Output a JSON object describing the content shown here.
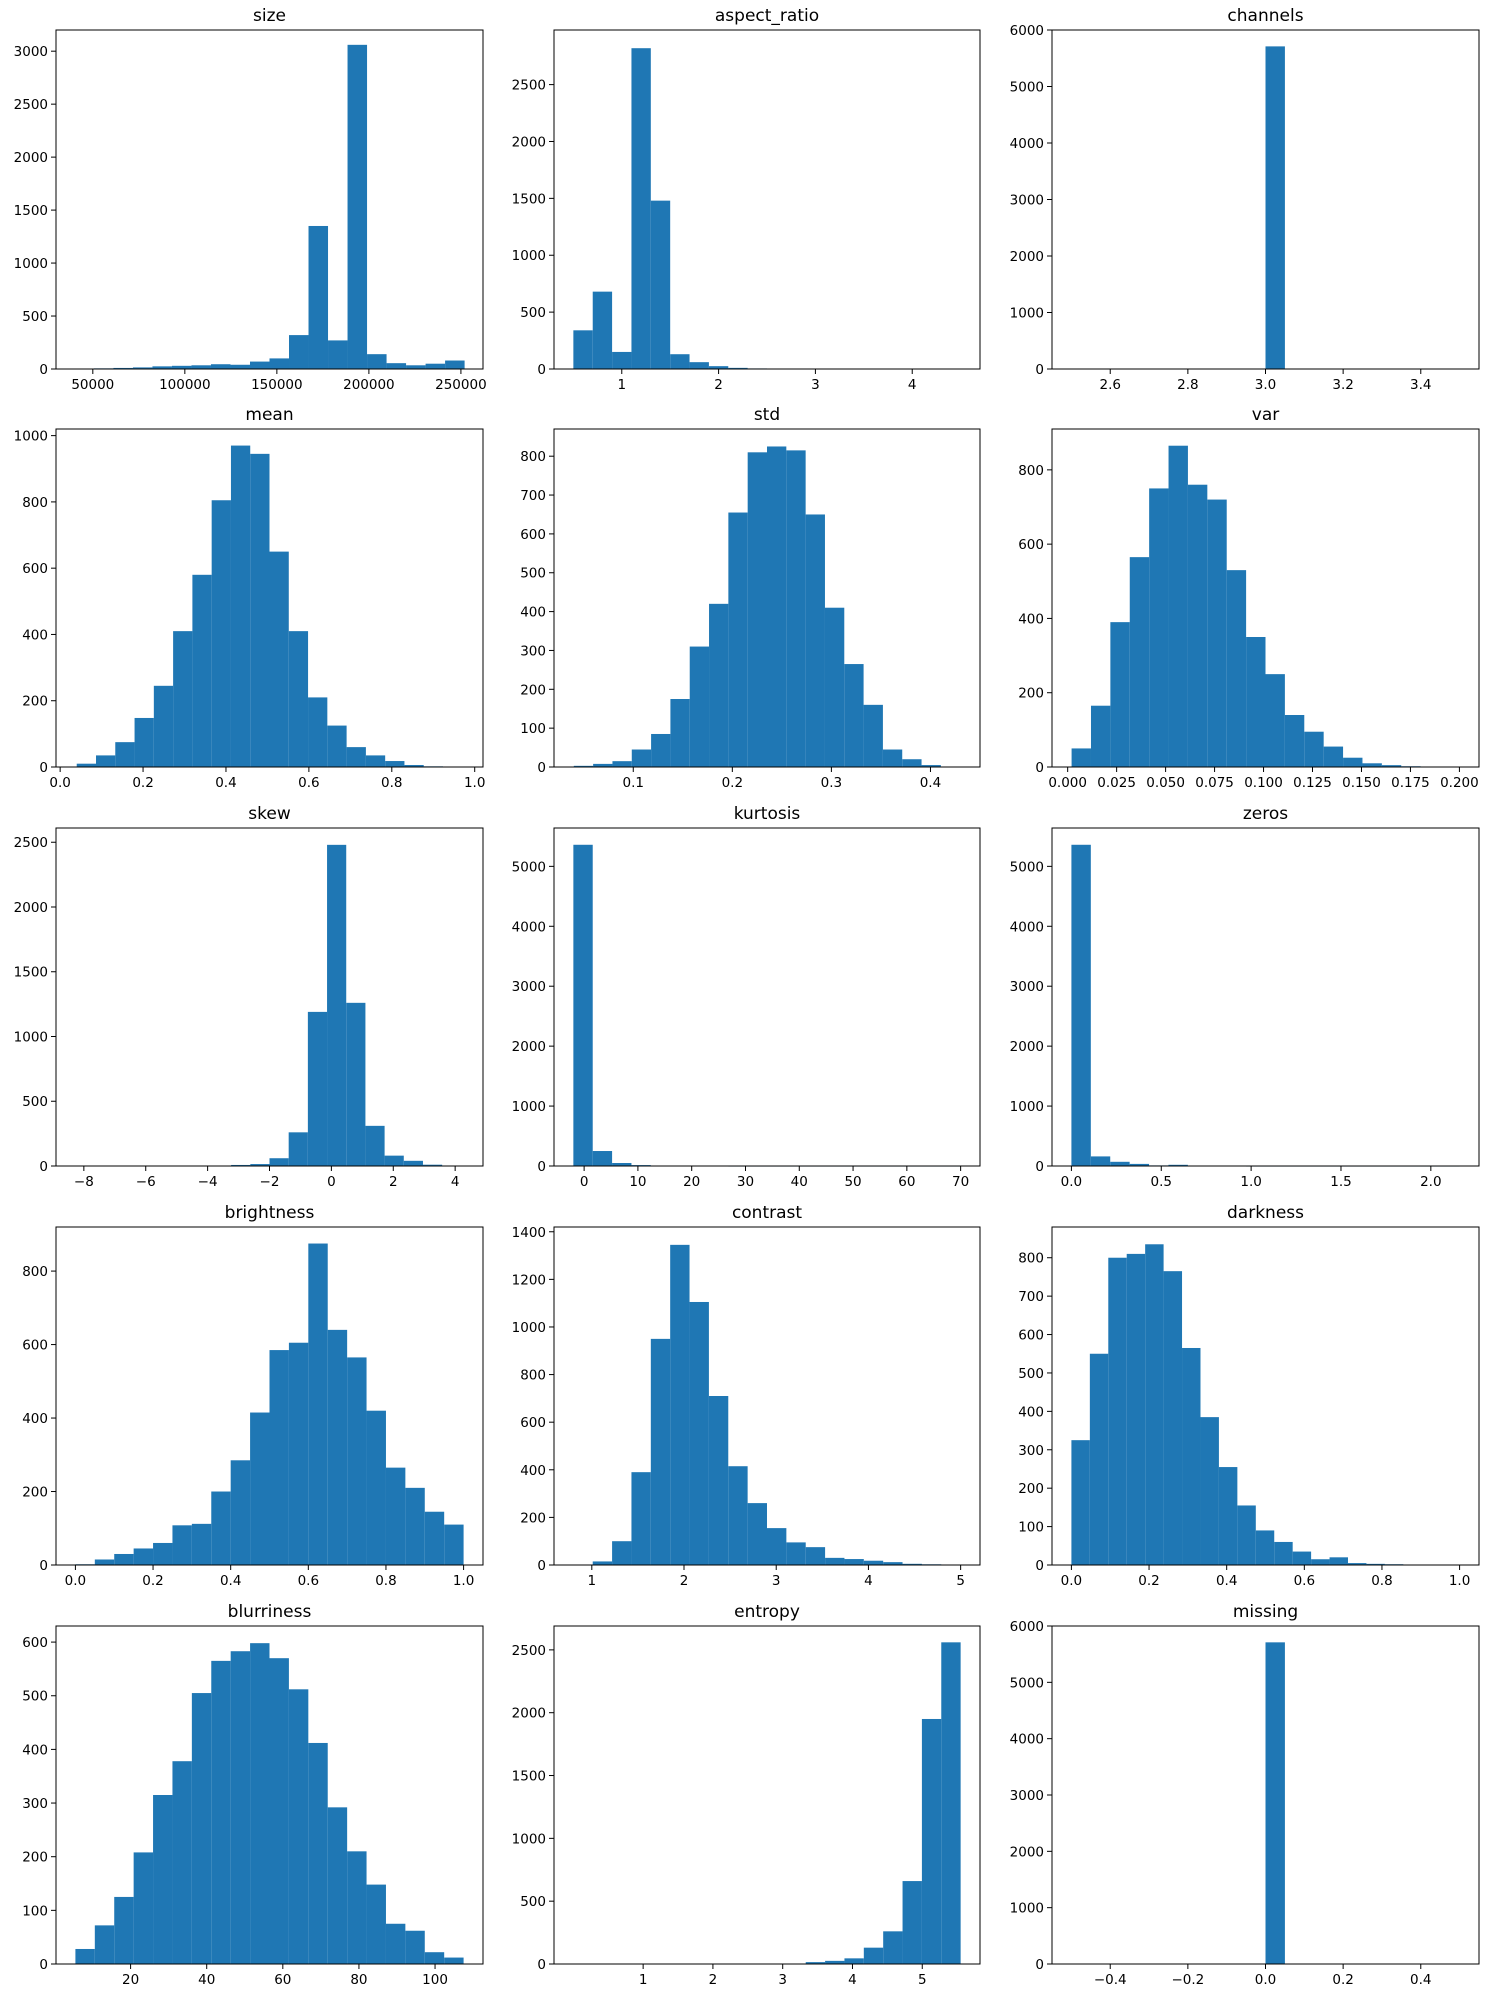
{
  "colors": {
    "bar": "#1f77b4",
    "axis": "#000000",
    "background": "#ffffff"
  },
  "chart_data": [
    {
      "type": "bar",
      "title": "size",
      "xlabel": "",
      "ylabel": "",
      "bin_edges": [
        40000,
        50600,
        61200,
        71800,
        82400,
        93000,
        103600,
        114200,
        124800,
        135400,
        146000,
        156600,
        167200,
        177800,
        188400,
        199000,
        209600,
        220200,
        230800,
        241400,
        252000
      ],
      "counts": [
        3,
        6,
        10,
        15,
        25,
        30,
        35,
        45,
        40,
        70,
        100,
        320,
        1350,
        270,
        3060,
        140,
        55,
        35,
        50,
        80
      ],
      "xlim": [
        30000,
        262000
      ],
      "ylim": [
        0,
        3200
      ],
      "xticks": [
        50000,
        100000,
        150000,
        200000,
        250000
      ],
      "xtick_labels": [
        "50000",
        "100000",
        "150000",
        "200000",
        "250000"
      ],
      "yticks": [
        0,
        500,
        1000,
        1500,
        2000,
        2500,
        3000
      ],
      "ytick_labels": [
        "0",
        "500",
        "1000",
        "1500",
        "2000",
        "2500",
        "3000"
      ]
    },
    {
      "type": "bar",
      "title": "aspect_ratio",
      "xlabel": "",
      "ylabel": "",
      "bin_edges": [
        0.5,
        0.7,
        0.9,
        1.1,
        1.3,
        1.5,
        1.7,
        1.9,
        2.1,
        2.3,
        2.5,
        2.7,
        2.9,
        3.1,
        3.3,
        3.5,
        3.7,
        3.9,
        4.1,
        4.3,
        4.5
      ],
      "counts": [
        340,
        680,
        150,
        2820,
        1480,
        130,
        60,
        25,
        10,
        5,
        2,
        2,
        1,
        1,
        1,
        1,
        1,
        1,
        1,
        1
      ],
      "xlim": [
        0.3,
        4.7
      ],
      "ylim": [
        0,
        2980
      ],
      "xticks": [
        1,
        2,
        3,
        4
      ],
      "xtick_labels": [
        "1",
        "2",
        "3",
        "4"
      ],
      "yticks": [
        0,
        500,
        1000,
        1500,
        2000,
        2500
      ],
      "ytick_labels": [
        "0",
        "500",
        "1000",
        "1500",
        "2000",
        "2500"
      ]
    },
    {
      "type": "bar",
      "title": "channels",
      "xlabel": "",
      "ylabel": "",
      "bin_edges": [
        2.5,
        2.55,
        2.6,
        2.65,
        2.7,
        2.75,
        2.8,
        2.85,
        2.9,
        2.95,
        3.0,
        3.05,
        3.1,
        3.15,
        3.2,
        3.25,
        3.3,
        3.35,
        3.4,
        3.45,
        3.5
      ],
      "counts": [
        0,
        0,
        0,
        0,
        0,
        0,
        0,
        0,
        0,
        0,
        5710,
        0,
        0,
        0,
        0,
        0,
        0,
        0,
        0,
        0
      ],
      "xlim": [
        2.45,
        3.55
      ],
      "ylim": [
        0,
        6000
      ],
      "xticks": [
        2.6,
        2.8,
        3.0,
        3.2,
        3.4
      ],
      "xtick_labels": [
        "2.6",
        "2.8",
        "3.0",
        "3.2",
        "3.4"
      ],
      "yticks": [
        0,
        1000,
        2000,
        3000,
        4000,
        5000,
        6000
      ],
      "ytick_labels": [
        "0",
        "1000",
        "2000",
        "3000",
        "4000",
        "5000",
        "6000"
      ]
    },
    {
      "type": "bar",
      "title": "mean",
      "xlabel": "",
      "ylabel": "",
      "bin_edges": [
        0.04,
        0.0865,
        0.133,
        0.1795,
        0.226,
        0.2725,
        0.319,
        0.3655,
        0.412,
        0.4585,
        0.505,
        0.5515,
        0.598,
        0.6445,
        0.691,
        0.7375,
        0.784,
        0.8305,
        0.877,
        0.9235,
        0.97
      ],
      "counts": [
        10,
        35,
        75,
        148,
        245,
        410,
        580,
        805,
        970,
        945,
        650,
        410,
        210,
        125,
        60,
        35,
        18,
        6,
        2,
        1
      ],
      "xlim": [
        -0.01,
        1.02
      ],
      "ylim": [
        0,
        1020
      ],
      "xticks": [
        0.0,
        0.2,
        0.4,
        0.6,
        0.8,
        1.0
      ],
      "xtick_labels": [
        "0.0",
        "0.2",
        "0.4",
        "0.6",
        "0.8",
        "1.0"
      ],
      "yticks": [
        0,
        200,
        400,
        600,
        800,
        1000
      ],
      "ytick_labels": [
        "0",
        "200",
        "400",
        "600",
        "800",
        "1000"
      ]
    },
    {
      "type": "bar",
      "title": "std",
      "xlabel": "",
      "ylabel": "",
      "bin_edges": [
        0.04,
        0.0595,
        0.079,
        0.0985,
        0.118,
        0.1375,
        0.157,
        0.1765,
        0.196,
        0.2155,
        0.235,
        0.2545,
        0.274,
        0.2935,
        0.313,
        0.3325,
        0.352,
        0.3715,
        0.391,
        0.4105,
        0.43
      ],
      "counts": [
        3,
        8,
        15,
        45,
        85,
        175,
        310,
        420,
        655,
        810,
        825,
        815,
        650,
        410,
        265,
        160,
        45,
        20,
        5,
        1
      ],
      "xlim": [
        0.02,
        0.45
      ],
      "ylim": [
        0,
        870
      ],
      "xticks": [
        0.1,
        0.2,
        0.3,
        0.4
      ],
      "xtick_labels": [
        "0.1",
        "0.2",
        "0.3",
        "0.4"
      ],
      "yticks": [
        0,
        100,
        200,
        300,
        400,
        500,
        600,
        700,
        800
      ],
      "ytick_labels": [
        "0",
        "100",
        "200",
        "300",
        "400",
        "500",
        "600",
        "700",
        "800"
      ]
    },
    {
      "type": "bar",
      "title": "var",
      "xlabel": "",
      "ylabel": "",
      "bin_edges": [
        0.002,
        0.0119,
        0.0218,
        0.0317,
        0.0416,
        0.0515,
        0.0614,
        0.0713,
        0.0812,
        0.0911,
        0.101,
        0.1109,
        0.1208,
        0.1307,
        0.1406,
        0.1505,
        0.1604,
        0.1703,
        0.1802,
        0.1901,
        0.2
      ],
      "counts": [
        50,
        165,
        390,
        565,
        750,
        865,
        760,
        720,
        530,
        350,
        250,
        140,
        95,
        55,
        25,
        10,
        5,
        2,
        1,
        1
      ],
      "xlim": [
        -0.008,
        0.21
      ],
      "ylim": [
        0,
        910
      ],
      "xticks": [
        0.0,
        0.025,
        0.05,
        0.075,
        0.1,
        0.125,
        0.15,
        0.175,
        0.2
      ],
      "xtick_labels": [
        "0.000",
        "0.025",
        "0.050",
        "0.075",
        "0.100",
        "0.125",
        "0.150",
        "0.175",
        "0.200"
      ],
      "yticks": [
        0,
        200,
        400,
        600,
        800
      ],
      "ytick_labels": [
        "0",
        "200",
        "400",
        "600",
        "800"
      ]
    },
    {
      "type": "bar",
      "title": "skew",
      "xlabel": "",
      "ylabel": "",
      "bin_edges": [
        -8.2,
        -7.58,
        -6.96,
        -6.34,
        -5.72,
        -5.1,
        -4.48,
        -3.86,
        -3.24,
        -2.62,
        -2.0,
        -1.38,
        -0.76,
        -0.14,
        0.48,
        1.1,
        1.72,
        2.34,
        2.96,
        3.58,
        4.2
      ],
      "counts": [
        1,
        1,
        1,
        1,
        1,
        1,
        2,
        3,
        8,
        15,
        60,
        260,
        1190,
        2480,
        1260,
        310,
        80,
        40,
        10,
        3
      ],
      "xlim": [
        -8.9,
        4.9
      ],
      "ylim": [
        0,
        2610
      ],
      "xticks": [
        -8,
        -6,
        -4,
        -2,
        0,
        2,
        4
      ],
      "xtick_labels": [
        "−8",
        "−6",
        "−4",
        "−2",
        "0",
        "2",
        "4"
      ],
      "yticks": [
        0,
        500,
        1000,
        1500,
        2000,
        2500
      ],
      "ytick_labels": [
        "0",
        "500",
        "1000",
        "1500",
        "2000",
        "2500"
      ]
    },
    {
      "type": "bar",
      "title": "kurtosis",
      "xlabel": "",
      "ylabel": "",
      "bin_edges": [
        -2.0,
        1.6,
        5.2,
        8.8,
        12.4,
        16.0,
        19.6,
        23.2,
        26.8,
        30.4,
        34.0,
        37.6,
        41.2,
        44.8,
        48.4,
        52.0,
        55.6,
        59.2,
        62.8,
        66.4,
        70.0
      ],
      "counts": [
        5360,
        250,
        50,
        15,
        5,
        3,
        2,
        2,
        1,
        1,
        1,
        1,
        1,
        1,
        1,
        1,
        1,
        1,
        1,
        1
      ],
      "xlim": [
        -5.6,
        73.6
      ],
      "ylim": [
        0,
        5640
      ],
      "xticks": [
        0,
        10,
        20,
        30,
        40,
        50,
        60,
        70
      ],
      "xtick_labels": [
        "0",
        "10",
        "20",
        "30",
        "40",
        "50",
        "60",
        "70"
      ],
      "yticks": [
        0,
        1000,
        2000,
        3000,
        4000,
        5000
      ],
      "ytick_labels": [
        "0",
        "1000",
        "2000",
        "3000",
        "4000",
        "5000"
      ]
    },
    {
      "type": "bar",
      "title": "zeros",
      "xlabel": "",
      "ylabel": "",
      "bin_edges": [
        0.0,
        0.108,
        0.216,
        0.324,
        0.432,
        0.54,
        0.648,
        0.756,
        0.864,
        0.972,
        1.08,
        1.188,
        1.296,
        1.404,
        1.512,
        1.62,
        1.728,
        1.836,
        1.944,
        2.052,
        2.16
      ],
      "counts": [
        5360,
        160,
        70,
        35,
        10,
        20,
        5,
        3,
        2,
        1,
        1,
        1,
        1,
        1,
        1,
        1,
        1,
        1,
        1,
        1
      ],
      "xlim": [
        -0.108,
        2.268
      ],
      "ylim": [
        0,
        5640
      ],
      "xticks": [
        0.0,
        0.5,
        1.0,
        1.5,
        2.0
      ],
      "xtick_labels": [
        "0.0",
        "0.5",
        "1.0",
        "1.5",
        "2.0"
      ],
      "yticks": [
        0,
        1000,
        2000,
        3000,
        4000,
        5000
      ],
      "ytick_labels": [
        "0",
        "1000",
        "2000",
        "3000",
        "4000",
        "5000"
      ]
    },
    {
      "type": "bar",
      "title": "brightness",
      "xlabel": "",
      "ylabel": "",
      "bin_edges": [
        0.0,
        0.05,
        0.1,
        0.15,
        0.2,
        0.25,
        0.3,
        0.35,
        0.4,
        0.45,
        0.5,
        0.55,
        0.6,
        0.65,
        0.7,
        0.75,
        0.8,
        0.85,
        0.9,
        0.95,
        1.0
      ],
      "counts": [
        2,
        15,
        30,
        45,
        60,
        108,
        112,
        200,
        285,
        415,
        585,
        605,
        875,
        640,
        565,
        420,
        265,
        210,
        145,
        110
      ],
      "xlim": [
        -0.05,
        1.05
      ],
      "ylim": [
        0,
        920
      ],
      "xticks": [
        0.0,
        0.2,
        0.4,
        0.6,
        0.8,
        1.0
      ],
      "xtick_labels": [
        "0.0",
        "0.2",
        "0.4",
        "0.6",
        "0.8",
        "1.0"
      ],
      "yticks": [
        0,
        200,
        400,
        600,
        800
      ],
      "ytick_labels": [
        "0",
        "200",
        "400",
        "600",
        "800"
      ]
    },
    {
      "type": "bar",
      "title": "contrast",
      "xlabel": "",
      "ylabel": "",
      "bin_edges": [
        0.8,
        1.01,
        1.22,
        1.43,
        1.64,
        1.85,
        2.06,
        2.27,
        2.48,
        2.69,
        2.9,
        3.11,
        3.32,
        3.53,
        3.74,
        3.95,
        4.16,
        4.37,
        4.58,
        4.79,
        5.0
      ],
      "counts": [
        2,
        15,
        100,
        390,
        950,
        1345,
        1105,
        710,
        415,
        260,
        155,
        95,
        75,
        30,
        25,
        18,
        12,
        5,
        3,
        1
      ],
      "xlim": [
        0.59,
        5.21
      ],
      "ylim": [
        0,
        1420
      ],
      "xticks": [
        1,
        2,
        3,
        4,
        5
      ],
      "xtick_labels": [
        "1",
        "2",
        "3",
        "4",
        "5"
      ],
      "yticks": [
        0,
        200,
        400,
        600,
        800,
        1000,
        1200,
        1400
      ],
      "ytick_labels": [
        "0",
        "200",
        "400",
        "600",
        "800",
        "1000",
        "1200",
        "1400"
      ]
    },
    {
      "type": "bar",
      "title": "darkness",
      "xlabel": "",
      "ylabel": "",
      "bin_edges": [
        0.0,
        0.0475,
        0.095,
        0.1425,
        0.19,
        0.2375,
        0.285,
        0.3325,
        0.38,
        0.4275,
        0.475,
        0.5225,
        0.57,
        0.6175,
        0.665,
        0.7125,
        0.76,
        0.8075,
        0.855,
        0.9025,
        0.95
      ],
      "counts": [
        325,
        550,
        800,
        810,
        835,
        765,
        565,
        385,
        255,
        155,
        90,
        60,
        35,
        15,
        20,
        5,
        3,
        2,
        1,
        1
      ],
      "xlim": [
        -0.05,
        1.05
      ],
      "ylim": [
        0,
        880
      ],
      "xticks": [
        0.0,
        0.2,
        0.4,
        0.6,
        0.8,
        1.0
      ],
      "xtick_labels": [
        "0.0",
        "0.2",
        "0.4",
        "0.6",
        "0.8",
        "1.0"
      ],
      "yticks": [
        0,
        100,
        200,
        300,
        400,
        500,
        600,
        700,
        800
      ],
      "ytick_labels": [
        "0",
        "100",
        "200",
        "300",
        "400",
        "500",
        "600",
        "700",
        "800"
      ]
    },
    {
      "type": "bar",
      "title": "blurriness",
      "xlabel": "",
      "ylabel": "",
      "bin_edges": [
        5.5,
        10.6,
        15.7,
        20.8,
        25.9,
        31.0,
        36.1,
        41.2,
        46.3,
        51.4,
        56.5,
        61.6,
        66.7,
        71.8,
        76.9,
        82.0,
        87.1,
        92.2,
        97.3,
        102.4,
        107.5
      ],
      "counts": [
        28,
        72,
        125,
        208,
        315,
        378,
        505,
        565,
        583,
        598,
        570,
        512,
        412,
        292,
        210,
        148,
        75,
        62,
        22,
        12
      ],
      "xlim": [
        0.4,
        112.6
      ],
      "ylim": [
        0,
        630
      ],
      "xticks": [
        20,
        40,
        60,
        80,
        100
      ],
      "xtick_labels": [
        "20",
        "40",
        "60",
        "80",
        "100"
      ],
      "yticks": [
        0,
        100,
        200,
        300,
        400,
        500,
        600
      ],
      "ytick_labels": [
        "0",
        "100",
        "200",
        "300",
        "400",
        "500",
        "600"
      ]
    },
    {
      "type": "bar",
      "title": "entropy",
      "xlabel": "",
      "ylabel": "",
      "bin_edges": [
        0.0,
        0.2775,
        0.555,
        0.8325,
        1.11,
        1.3875,
        1.665,
        1.9425,
        2.22,
        2.4975,
        2.775,
        3.0525,
        3.33,
        3.6075,
        3.885,
        4.1625,
        4.44,
        4.7175,
        4.995,
        5.2725,
        5.55
      ],
      "counts": [
        1,
        1,
        1,
        1,
        1,
        1,
        1,
        1,
        1,
        1,
        2,
        3,
        15,
        25,
        45,
        130,
        260,
        660,
        1950,
        2560
      ],
      "xlim": [
        -0.2775,
        5.8275
      ],
      "ylim": [
        0,
        2690
      ],
      "xticks": [
        1,
        2,
        3,
        4,
        5
      ],
      "xtick_labels": [
        "1",
        "2",
        "3",
        "4",
        "5"
      ],
      "yticks": [
        0,
        500,
        1000,
        1500,
        2000,
        2500
      ],
      "ytick_labels": [
        "0",
        "500",
        "1000",
        "1500",
        "2000",
        "2500"
      ]
    },
    {
      "type": "bar",
      "title": "missing",
      "xlabel": "",
      "ylabel": "",
      "bin_edges": [
        -0.5,
        -0.45,
        -0.4,
        -0.35,
        -0.3,
        -0.25,
        -0.2,
        -0.15,
        -0.1,
        -0.05,
        0.0,
        0.05,
        0.1,
        0.15,
        0.2,
        0.25,
        0.3,
        0.35,
        0.4,
        0.45,
        0.5
      ],
      "counts": [
        0,
        0,
        0,
        0,
        0,
        0,
        0,
        0,
        0,
        0,
        5710,
        0,
        0,
        0,
        0,
        0,
        0,
        0,
        0,
        0
      ],
      "xlim": [
        -0.55,
        0.55
      ],
      "ylim": [
        0,
        6000
      ],
      "xticks": [
        -0.4,
        -0.2,
        0.0,
        0.2,
        0.4
      ],
      "xtick_labels": [
        "−0.4",
        "−0.2",
        "0.0",
        "0.2",
        "0.4"
      ],
      "yticks": [
        0,
        1000,
        2000,
        3000,
        4000,
        5000,
        6000
      ],
      "ytick_labels": [
        "0",
        "1000",
        "2000",
        "3000",
        "4000",
        "5000",
        "6000"
      ]
    }
  ]
}
